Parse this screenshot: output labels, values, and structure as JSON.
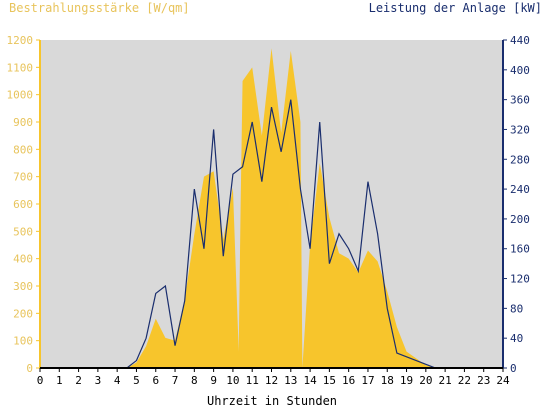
{
  "chart_data": {
    "type": "area",
    "ylabel_left": "Bestrahlungsstärke [W/qm]",
    "ylabel_right": "Leistung der Anlage [kW]",
    "xlabel": "Uhrzeit in Stunden",
    "xlim": [
      0,
      24
    ],
    "ylim_left": [
      0,
      1200
    ],
    "ylim_right": [
      0,
      440
    ],
    "xticks": [
      0,
      1,
      2,
      3,
      4,
      5,
      6,
      7,
      8,
      9,
      10,
      11,
      12,
      13,
      14,
      15,
      16,
      17,
      18,
      19,
      20,
      21,
      22,
      23,
      24
    ],
    "yticks_left": [
      0,
      100,
      200,
      300,
      400,
      500,
      600,
      700,
      800,
      900,
      1000,
      1100,
      1200
    ],
    "yticks_right": [
      0,
      40,
      80,
      120,
      160,
      200,
      240,
      280,
      320,
      360,
      400,
      440
    ],
    "grid": false,
    "legend": "none",
    "colors": {
      "irradiance": "#f7c52c",
      "power": "#1a2e6e",
      "plot_bg": "#d9d9d9"
    },
    "series": [
      {
        "axis": "left",
        "x": [
          0,
          4.5,
          5,
          5.5,
          6,
          6.5,
          7,
          7.5,
          8,
          8.5,
          9,
          9.5,
          10,
          10.3,
          10.4,
          10.5,
          11,
          11.5,
          12,
          12.5,
          13,
          13.5,
          13.6,
          14,
          14.5,
          15,
          15.5,
          16,
          16.5,
          17,
          17.5,
          18,
          18.5,
          19,
          19.5,
          20,
          20.5,
          24
        ],
        "values": [
          0,
          0,
          20,
          80,
          180,
          110,
          100,
          250,
          490,
          700,
          720,
          470,
          660,
          60,
          600,
          1050,
          1100,
          850,
          1170,
          860,
          1160,
          900,
          0,
          450,
          750,
          550,
          420,
          400,
          350,
          430,
          390,
          280,
          150,
          60,
          35,
          10,
          0,
          0
        ]
      },
      {
        "axis": "right",
        "x": [
          0,
          4.5,
          5,
          5.5,
          6,
          6.5,
          7,
          7.5,
          8,
          8.5,
          9,
          9.5,
          10,
          10.5,
          11,
          11.5,
          12,
          12.5,
          13,
          13.5,
          14,
          14.5,
          15,
          15.5,
          16,
          16.5,
          17,
          17.5,
          18,
          18.5,
          19,
          19.5,
          20,
          20.5,
          24
        ],
        "values": [
          0,
          0,
          10,
          40,
          100,
          110,
          30,
          90,
          240,
          160,
          320,
          150,
          260,
          270,
          330,
          250,
          350,
          290,
          360,
          240,
          160,
          330,
          140,
          180,
          160,
          130,
          250,
          180,
          80,
          20,
          15,
          10,
          5,
          0,
          0
        ]
      }
    ]
  },
  "labels": {
    "left_axis": "Bestrahlungsstärke [W/qm]",
    "right_axis": "Leistung der Anlage [kW]",
    "x_axis": "Uhrzeit in Stunden"
  }
}
